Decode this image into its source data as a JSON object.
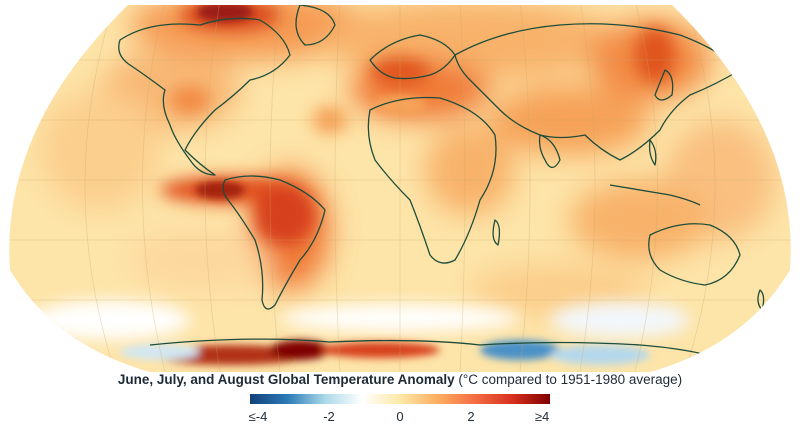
{
  "caption": {
    "title": "June, July, and August Global Temperature Anomaly",
    "subtitle": "(°C compared to 1951-1980 average)"
  },
  "legend": {
    "ticks": [
      "≤-4",
      "-2",
      "0",
      "2",
      "≥4"
    ],
    "tick_values": [
      -4,
      -2,
      0,
      2,
      4
    ],
    "colors": [
      "#12407a",
      "#2c7bb6",
      "#abd9e9",
      "#ffffff",
      "#fde9a8",
      "#fdae61",
      "#f46d43",
      "#d7301f",
      "#7f0000"
    ]
  },
  "map": {
    "projection": "Robinson",
    "graticule": true,
    "ocean_base_color": "#fde8b0",
    "coastline_color": "#1d4d3a",
    "warm_color": "#e0521c",
    "hot_color": "#9c1b12",
    "cool_color": "#6aa9d6"
  }
}
